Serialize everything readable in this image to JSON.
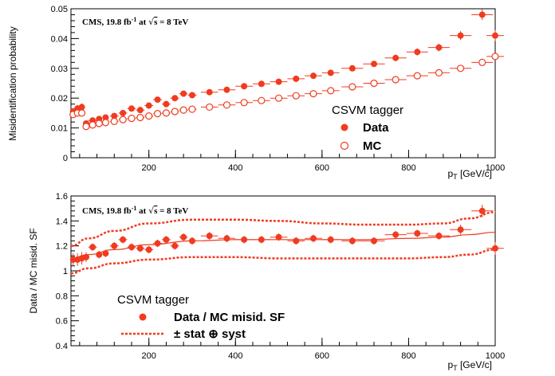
{
  "colors": {
    "data": "#f03b20",
    "axis": "#000000"
  },
  "chart_data": [
    {
      "type": "scatter",
      "annotation": "CMS, 19.8 fb-1 at √s = 8 TeV",
      "annotation_parts": {
        "pre": "CMS, 19.8 fb",
        "sup": "-1",
        "mid": " at ",
        "sqrt": "s",
        "post": " = 8 TeV"
      },
      "xlabel": "p_T [GeV/c]",
      "xlabel_parts": {
        "p": "p",
        "sub": "T",
        "rest": " [GeV/c]"
      },
      "ylabel": "Misidentification probability",
      "xlim": [
        20,
        1000
      ],
      "ylim": [
        0,
        0.05
      ],
      "x_ticks": [
        200,
        400,
        600,
        800,
        1000
      ],
      "y_ticks": [
        0,
        0.01,
        0.02,
        0.03,
        0.04,
        0.05
      ],
      "y_tick_labels": [
        "0",
        "0.01",
        "0.02",
        "0.03",
        "0.04",
        "0.05"
      ],
      "legend": {
        "title": "CSVM tagger",
        "placement": "right"
      },
      "series": [
        {
          "name": "Data",
          "marker": "filled-circle",
          "x": [
            25,
            35,
            45,
            55,
            70,
            85,
            100,
            120,
            140,
            160,
            180,
            200,
            220,
            240,
            260,
            280,
            300,
            340,
            380,
            420,
            460,
            500,
            540,
            580,
            620,
            670,
            720,
            770,
            820,
            870,
            920,
            970,
            1000
          ],
          "y": [
            0.0155,
            0.0165,
            0.017,
            0.0115,
            0.0125,
            0.013,
            0.0135,
            0.014,
            0.015,
            0.0165,
            0.016,
            0.0175,
            0.0195,
            0.018,
            0.02,
            0.0215,
            0.021,
            0.022,
            0.0228,
            0.024,
            0.0248,
            0.0255,
            0.0265,
            0.0275,
            0.0285,
            0.03,
            0.0315,
            0.0335,
            0.0355,
            0.037,
            0.041,
            0.048,
            0.041
          ],
          "xerr": [
            5,
            5,
            5,
            5,
            10,
            5,
            5,
            10,
            10,
            10,
            10,
            10,
            10,
            10,
            10,
            10,
            10,
            20,
            20,
            20,
            20,
            20,
            20,
            20,
            20,
            25,
            25,
            25,
            25,
            25,
            25,
            25,
            20
          ],
          "yerr": [
            0.0012,
            0.0012,
            0.0012,
            0.0008,
            0.0006,
            0.0006,
            0.0005,
            0.0005,
            0.0005,
            0.0006,
            0.0006,
            0.0006,
            0.0006,
            0.0006,
            0.0006,
            0.0006,
            0.0006,
            0.0006,
            0.0006,
            0.0007,
            0.0007,
            0.0008,
            0.0008,
            0.0009,
            0.0009,
            0.001,
            0.001,
            0.0011,
            0.0012,
            0.0013,
            0.0015,
            0.0018,
            0.0018
          ]
        },
        {
          "name": "MC",
          "marker": "open-circle",
          "x": [
            25,
            35,
            45,
            55,
            70,
            85,
            100,
            120,
            140,
            160,
            180,
            200,
            220,
            240,
            260,
            280,
            300,
            340,
            380,
            420,
            460,
            500,
            540,
            580,
            620,
            670,
            720,
            770,
            820,
            870,
            920,
            970,
            1000
          ],
          "y": [
            0.0145,
            0.015,
            0.015,
            0.0105,
            0.011,
            0.0115,
            0.0118,
            0.0122,
            0.0128,
            0.0132,
            0.0135,
            0.014,
            0.0148,
            0.015,
            0.0155,
            0.016,
            0.0163,
            0.017,
            0.0177,
            0.0185,
            0.0192,
            0.02,
            0.0208,
            0.0215,
            0.0225,
            0.0238,
            0.025,
            0.0262,
            0.0275,
            0.0285,
            0.03,
            0.032,
            0.034
          ],
          "xerr": [
            5,
            5,
            5,
            5,
            10,
            5,
            5,
            10,
            10,
            10,
            10,
            10,
            10,
            10,
            10,
            10,
            10,
            20,
            20,
            20,
            20,
            20,
            20,
            20,
            20,
            25,
            25,
            25,
            25,
            25,
            25,
            25,
            20
          ],
          "yerr": [
            0.0004,
            0.0004,
            0.0004,
            0.0003,
            0.0003,
            0.0003,
            0.0003,
            0.0003,
            0.0003,
            0.0003,
            0.0003,
            0.0003,
            0.0003,
            0.0003,
            0.0003,
            0.0003,
            0.0003,
            0.0003,
            0.0003,
            0.0003,
            0.0003,
            0.0004,
            0.0004,
            0.0004,
            0.0004,
            0.0004,
            0.0005,
            0.0005,
            0.0005,
            0.0005,
            0.0006,
            0.0006,
            0.0006
          ]
        }
      ]
    },
    {
      "type": "scatter",
      "annotation": "CMS, 19.8 fb-1 at √s = 8 TeV",
      "annotation_parts": {
        "pre": "CMS, 19.8 fb",
        "sup": "-1",
        "mid": " at ",
        "sqrt": "s",
        "post": " = 8 TeV"
      },
      "xlabel": "p_T [GeV/c]",
      "xlabel_parts": {
        "p": "p",
        "sub": "T",
        "rest": " [GeV/c]"
      },
      "ylabel": "Data / MC misid. SF",
      "xlim": [
        20,
        1000
      ],
      "ylim": [
        0.4,
        1.6
      ],
      "x_ticks": [
        200,
        400,
        600,
        800,
        1000
      ],
      "y_ticks": [
        0.4,
        0.6,
        0.8,
        1.0,
        1.2,
        1.4,
        1.6
      ],
      "y_tick_labels": [
        "0.4",
        "0.6",
        "0.8",
        "1",
        "1.2",
        "1.4",
        "1.6"
      ],
      "legend": {
        "title": "CSVM tagger",
        "placement": "bottom-left"
      },
      "series": [
        {
          "name": "Data / MC misid. SF",
          "marker": "filled-circle",
          "x": [
            25,
            35,
            45,
            55,
            70,
            85,
            100,
            120,
            140,
            160,
            180,
            200,
            220,
            240,
            260,
            280,
            300,
            340,
            380,
            420,
            460,
            500,
            540,
            580,
            620,
            670,
            720,
            770,
            820,
            870,
            920,
            970,
            1000
          ],
          "y": [
            1.09,
            1.09,
            1.1,
            1.11,
            1.19,
            1.13,
            1.14,
            1.2,
            1.25,
            1.19,
            1.18,
            1.17,
            1.22,
            1.25,
            1.2,
            1.27,
            1.24,
            1.28,
            1.26,
            1.25,
            1.25,
            1.27,
            1.24,
            1.26,
            1.25,
            1.24,
            1.24,
            1.29,
            1.3,
            1.28,
            1.33,
            1.48,
            1.18
          ],
          "xerr": [
            5,
            5,
            5,
            5,
            10,
            5,
            5,
            10,
            10,
            10,
            10,
            10,
            10,
            10,
            10,
            10,
            10,
            20,
            20,
            20,
            20,
            20,
            20,
            20,
            20,
            25,
            25,
            25,
            25,
            25,
            25,
            25,
            20
          ],
          "yerr": [
            0.05,
            0.05,
            0.05,
            0.04,
            0.03,
            0.03,
            0.03,
            0.03,
            0.03,
            0.03,
            0.03,
            0.03,
            0.03,
            0.03,
            0.03,
            0.03,
            0.03,
            0.03,
            0.03,
            0.03,
            0.03,
            0.03,
            0.03,
            0.03,
            0.03,
            0.03,
            0.03,
            0.03,
            0.03,
            0.03,
            0.04,
            0.05,
            0.05
          ]
        }
      ],
      "fit_curves": [
        {
          "name": "central",
          "style": "solid",
          "x": [
            20,
            60,
            120,
            200,
            300,
            400,
            500,
            600,
            700,
            800,
            880,
            940,
            1000
          ],
          "y": [
            1.1,
            1.13,
            1.17,
            1.21,
            1.24,
            1.25,
            1.25,
            1.25,
            1.25,
            1.26,
            1.27,
            1.29,
            1.31
          ]
        },
        {
          "name": "± stat ⊕ syst",
          "style": "dashed",
          "x": [
            20,
            60,
            120,
            200,
            300,
            400,
            500,
            600,
            700,
            800,
            880,
            940,
            1000
          ],
          "y": [
            1.2,
            1.26,
            1.32,
            1.38,
            1.41,
            1.41,
            1.4,
            1.38,
            1.37,
            1.37,
            1.38,
            1.42,
            1.47
          ]
        },
        {
          "name": "± stat ⊕ syst (lower)",
          "style": "dashed",
          "x": [
            20,
            60,
            120,
            200,
            300,
            400,
            500,
            600,
            700,
            800,
            880,
            940,
            1000
          ],
          "y": [
            0.98,
            1.02,
            1.06,
            1.09,
            1.11,
            1.11,
            1.1,
            1.1,
            1.1,
            1.1,
            1.11,
            1.13,
            1.17
          ]
        }
      ],
      "syst_label": "± stat ⊕ syst"
    }
  ]
}
